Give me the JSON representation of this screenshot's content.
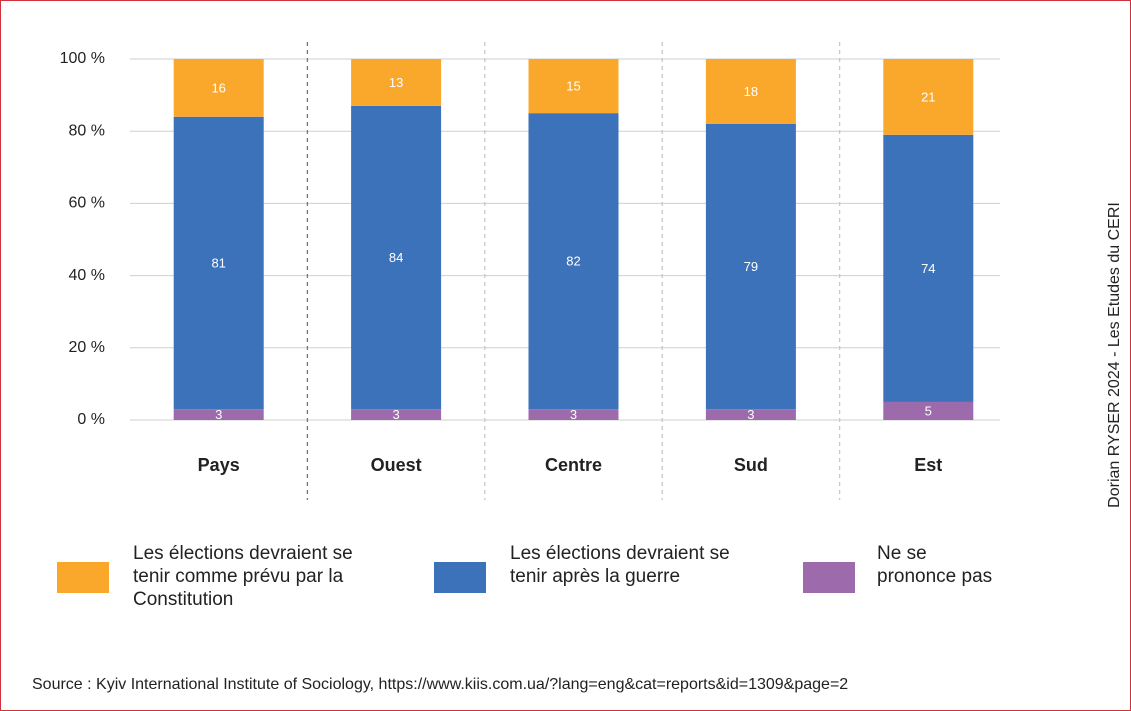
{
  "chart_data": {
    "type": "stacked_bar",
    "categories": [
      "Pays",
      "Ouest",
      "Centre",
      "Sud",
      "Est"
    ],
    "series": [
      {
        "name": "Les élections devraient se tenir comme prévu par la Constitution",
        "color": "#f9a82c",
        "values": [
          16,
          13,
          15,
          18,
          21
        ]
      },
      {
        "name": "Les élections devraient se tenir après la guerre",
        "color": "#3b72b9",
        "values": [
          81,
          84,
          82,
          79,
          74
        ]
      },
      {
        "name": "Ne se prononce pas",
        "color": "#9d6aab",
        "values": [
          3,
          3,
          3,
          3,
          5
        ]
      }
    ],
    "ylim": [
      0,
      100
    ],
    "yticks": [
      {
        "value": 0,
        "label": "0 %"
      },
      {
        "value": 20,
        "label": "20 %"
      },
      {
        "value": 40,
        "label": "40 %"
      },
      {
        "value": 60,
        "label": "60 %"
      },
      {
        "value": 80,
        "label": "80 %"
      },
      {
        "value": 100,
        "label": "100 %"
      }
    ],
    "grid": true,
    "source": "Source : Kyiv International Institute of Sociology, https://www.kiis.com.ua/?lang=eng&cat=reports&id=1309&page=2",
    "credit": "Dorian RYSER 2024 - Les Etudes du CERI"
  }
}
